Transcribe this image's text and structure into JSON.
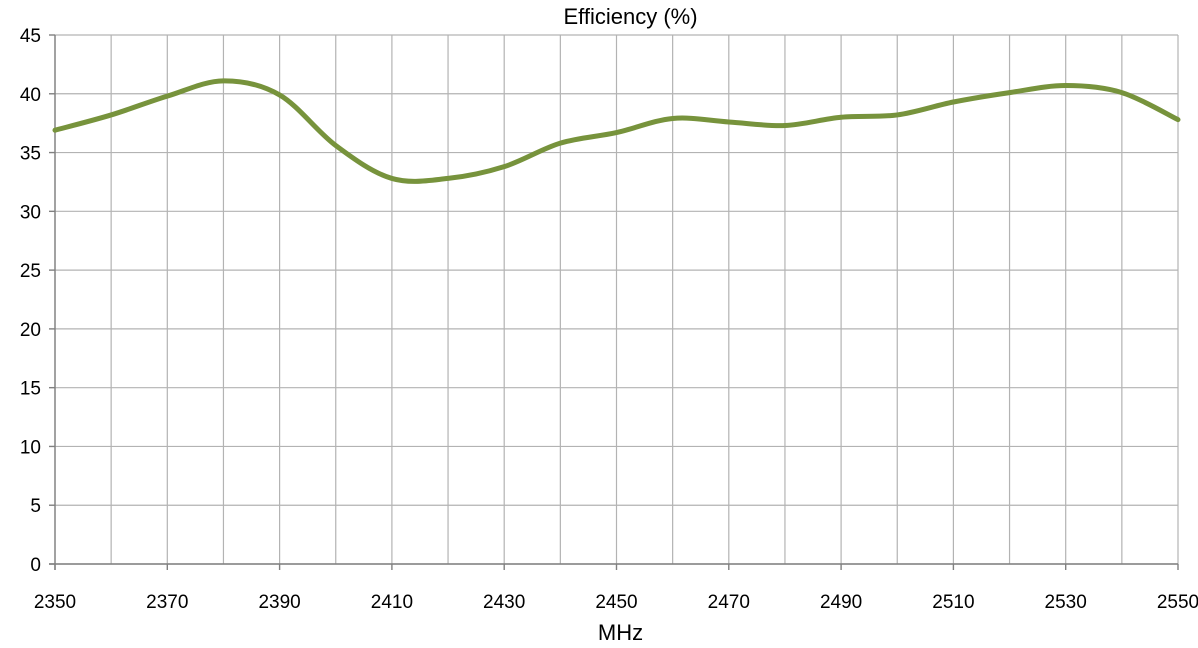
{
  "chart_data": {
    "type": "line",
    "title": "Efficiency (%)",
    "xlabel": "MHz",
    "ylabel": "",
    "xlim": [
      2350,
      2550
    ],
    "ylim": [
      0,
      45
    ],
    "x_ticks": [
      2350,
      2370,
      2390,
      2410,
      2430,
      2450,
      2470,
      2490,
      2510,
      2530,
      2550
    ],
    "y_ticks": [
      0,
      5,
      10,
      15,
      20,
      25,
      30,
      35,
      40,
      45
    ],
    "grid": true,
    "series": [
      {
        "color": "#77933c",
        "x": [
          2350,
          2360,
          2370,
          2380,
          2390,
          2400,
          2410,
          2420,
          2430,
          2440,
          2450,
          2460,
          2470,
          2480,
          2490,
          2500,
          2510,
          2520,
          2530,
          2540,
          2550
        ],
        "values": [
          36.9,
          38.2,
          39.8,
          41.1,
          39.9,
          35.6,
          32.8,
          32.8,
          33.8,
          35.8,
          36.7,
          37.9,
          37.6,
          37.3,
          38.0,
          38.2,
          39.3,
          40.1,
          40.7,
          40.1,
          37.8
        ]
      }
    ]
  }
}
